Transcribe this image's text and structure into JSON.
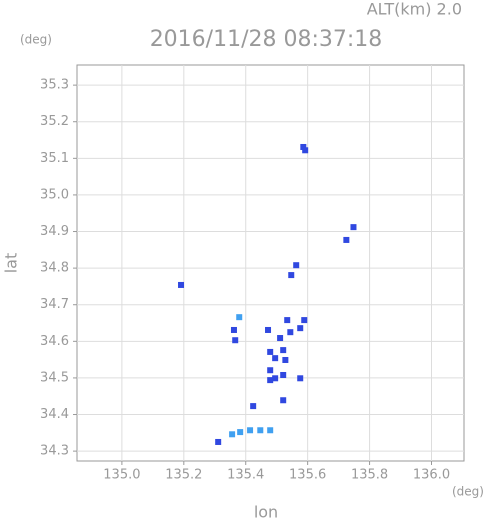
{
  "chart_data": {
    "type": "scatter",
    "title": "2016/11/28 08:37:18",
    "subtitle": "ALT(km) 2.0",
    "y_unit": "(deg)",
    "x_unit": "(deg)",
    "xlabel": "lon",
    "ylabel": "lat",
    "xlim": [
      134.855,
      136.105
    ],
    "ylim": [
      34.273,
      35.355
    ],
    "xticks": [
      {
        "value": 135.0,
        "label": "135.0"
      },
      135.2,
      135.4,
      135.6,
      135.8,
      {
        "value": 136.0,
        "label": "136.0"
      }
    ],
    "yticks": [
      34.3,
      34.4,
      34.5,
      34.6,
      34.7,
      34.8,
      34.9,
      {
        "value": 35.0,
        "label": "35.0"
      },
      35.1,
      35.2,
      35.3
    ],
    "grid": true,
    "series": [
      {
        "color": "#3048e0",
        "x": [
          135.586,
          135.592,
          135.748,
          135.725,
          135.563,
          135.547,
          135.191,
          135.362,
          135.366,
          135.472,
          135.511,
          135.544,
          135.576,
          135.589,
          135.534,
          135.479,
          135.521,
          135.528,
          135.495,
          135.479,
          135.495,
          135.479,
          135.521,
          135.576,
          135.424,
          135.521,
          135.311
        ],
        "values": [
          35.131,
          35.122,
          34.912,
          34.877,
          34.808,
          34.781,
          34.754,
          34.631,
          34.603,
          34.631,
          34.609,
          34.625,
          34.636,
          34.658,
          34.658,
          34.571,
          34.576,
          34.549,
          34.554,
          34.521,
          34.499,
          34.494,
          34.508,
          34.499,
          34.423,
          34.439,
          34.325
        ]
      },
      {
        "color": "#40a0f0",
        "x": [
          135.379,
          135.356,
          135.382,
          135.414,
          135.447,
          135.479
        ],
        "values": [
          34.666,
          34.346,
          34.352,
          34.357,
          34.357,
          34.357
        ]
      }
    ]
  }
}
